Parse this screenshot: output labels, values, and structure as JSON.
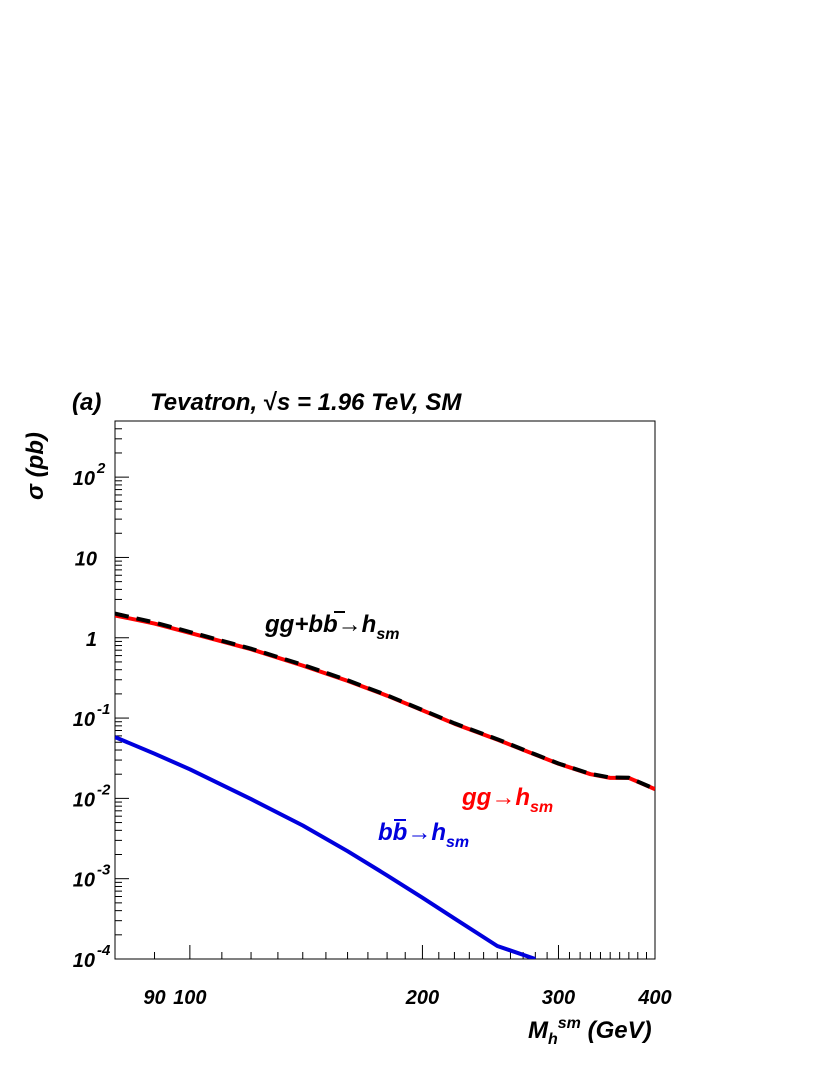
{
  "panel_label": "(a)",
  "header": {
    "title_prefix": "Tevatron, ",
    "sqrt_symbol": "√",
    "title_rest": "s = 1.96 TeV, SM"
  },
  "yaxis": {
    "label": "σ (pb)",
    "ticks": [
      {
        "value": 0.0001,
        "base": "10",
        "exp": "-4"
      },
      {
        "value": 0.001,
        "base": "10",
        "exp": "-3"
      },
      {
        "value": 0.01,
        "base": "10",
        "exp": "-2"
      },
      {
        "value": 0.1,
        "base": "10",
        "exp": "-1"
      },
      {
        "value": 1,
        "base": "1",
        "exp": ""
      },
      {
        "value": 10,
        "base": "10",
        "exp": ""
      },
      {
        "value": 100,
        "base": "10",
        "exp": "2"
      }
    ]
  },
  "xaxis": {
    "label_main": "M",
    "label_sub": "h",
    "label_sup": "sm",
    "label_unit": " (GeV)",
    "ticks": [
      {
        "value": 90,
        "text": "90"
      },
      {
        "value": 100,
        "text": "100"
      },
      {
        "value": 200,
        "text": "200"
      },
      {
        "value": 300,
        "text": "300"
      },
      {
        "value": 400,
        "text": "400"
      }
    ]
  },
  "annotations": {
    "total": {
      "pre": "gg+b",
      "bbar": "b",
      "arrow": "→h",
      "sub": "sm",
      "color": "#000000"
    },
    "gg": {
      "pre": "gg",
      "arrow": "→h",
      "sub": "sm",
      "color": "#ff0000"
    },
    "bb": {
      "pre": "b",
      "bbar": "b",
      "arrow": "→h",
      "sub": "sm",
      "color": "#0000dd"
    }
  },
  "chart_data": {
    "type": "line",
    "xscale": "log",
    "yscale": "log",
    "xlim": [
      80,
      400
    ],
    "ylim": [
      0.0001,
      500
    ],
    "series": [
      {
        "style": "red solid",
        "color": "#ff0000",
        "x": [
          80,
          90,
          100,
          120,
          140,
          160,
          180,
          200,
          220,
          250,
          280,
          300,
          330,
          350,
          370,
          400
        ],
        "y": [
          1.9,
          1.5,
          1.15,
          0.72,
          0.45,
          0.29,
          0.19,
          0.125,
          0.085,
          0.054,
          0.035,
          0.027,
          0.02,
          0.018,
          0.018,
          0.013
        ]
      },
      {
        "style": "black dashed",
        "color": "#000000",
        "x": [
          80,
          90,
          100,
          120,
          140,
          160,
          180,
          200,
          220,
          250,
          280,
          300,
          330,
          350,
          370,
          400
        ],
        "y": [
          2.0,
          1.55,
          1.18,
          0.73,
          0.46,
          0.295,
          0.192,
          0.126,
          0.086,
          0.0545,
          0.0353,
          0.0272,
          0.0202,
          0.0182,
          0.0181,
          0.0131
        ]
      },
      {
        "style": "blue solid",
        "color": "#0000dd",
        "x": [
          80,
          90,
          100,
          120,
          140,
          160,
          180,
          200,
          220,
          250,
          280
        ],
        "y": [
          0.058,
          0.036,
          0.023,
          0.0098,
          0.0046,
          0.0022,
          0.0011,
          0.00058,
          0.00032,
          0.000145,
          0.0001
        ]
      }
    ]
  }
}
